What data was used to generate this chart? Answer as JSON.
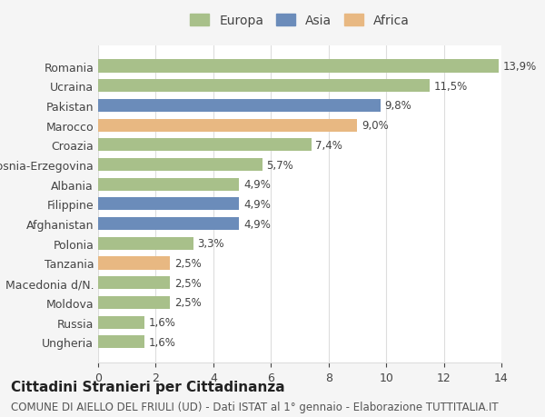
{
  "countries": [
    "Romania",
    "Ucraina",
    "Pakistan",
    "Marocco",
    "Croazia",
    "Bosnia-Erzegovina",
    "Albania",
    "Filippine",
    "Afghanistan",
    "Polonia",
    "Tanzania",
    "Macedonia d/N.",
    "Moldova",
    "Russia",
    "Ungheria"
  ],
  "values": [
    13.9,
    11.5,
    9.8,
    9.0,
    7.4,
    5.7,
    4.9,
    4.9,
    4.9,
    3.3,
    2.5,
    2.5,
    2.5,
    1.6,
    1.6
  ],
  "labels": [
    "13,9%",
    "11,5%",
    "9,8%",
    "9,0%",
    "7,4%",
    "5,7%",
    "4,9%",
    "4,9%",
    "4,9%",
    "3,3%",
    "2,5%",
    "2,5%",
    "2,5%",
    "1,6%",
    "1,6%"
  ],
  "continents": [
    "Europa",
    "Europa",
    "Asia",
    "Africa",
    "Europa",
    "Europa",
    "Europa",
    "Asia",
    "Asia",
    "Europa",
    "Africa",
    "Europa",
    "Europa",
    "Europa",
    "Europa"
  ],
  "colors": {
    "Europa": "#a8c08a",
    "Asia": "#6b8cba",
    "Africa": "#e8b882"
  },
  "xlim": [
    0,
    14
  ],
  "xticks": [
    0,
    2,
    4,
    6,
    8,
    10,
    12,
    14
  ],
  "background_color": "#f5f5f5",
  "plot_bg_color": "#ffffff",
  "title": "Cittadini Stranieri per Cittadinanza",
  "subtitle": "COMUNE DI AIELLO DEL FRIULI (UD) - Dati ISTAT al 1° gennaio - Elaborazione TUTTITALIA.IT",
  "grid_color": "#dddddd",
  "bar_height": 0.65,
  "title_fontsize": 11,
  "subtitle_fontsize": 8.5,
  "label_fontsize": 8.5,
  "tick_fontsize": 9,
  "legend_fontsize": 10
}
